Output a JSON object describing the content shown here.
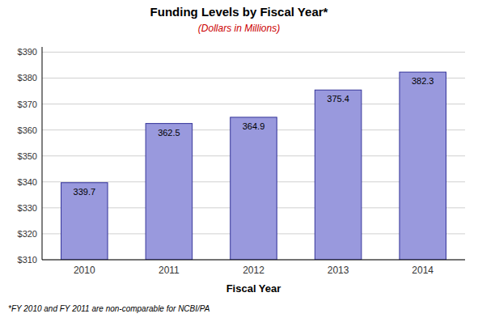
{
  "chart_data": {
    "type": "bar",
    "title": "Funding Levels  by Fiscal Year*",
    "subtitle": "(Dollars in Millions)",
    "xlabel": "Fiscal Year",
    "footnote": "*FY 2010 and FY 2011 are non-comparable for NCBI/PA",
    "categories": [
      "2010",
      "2011",
      "2012",
      "2013",
      "2014"
    ],
    "values": [
      339.7,
      362.5,
      364.9,
      375.4,
      382.3
    ],
    "color": "#9999DD",
    "ylim": [
      310,
      392
    ],
    "yticks": [
      {
        "value": 310,
        "label": "$310"
      },
      {
        "value": 320,
        "label": "$320"
      },
      {
        "value": 330,
        "label": "$330"
      },
      {
        "value": 340,
        "label": "$340"
      },
      {
        "value": 350,
        "label": "$350"
      },
      {
        "value": 360,
        "label": "$360"
      },
      {
        "value": 370,
        "label": "$370"
      },
      {
        "value": 380,
        "label": "$380"
      },
      {
        "value": 390,
        "label": "$390"
      }
    ],
    "grid": true,
    "data_labels": true
  }
}
